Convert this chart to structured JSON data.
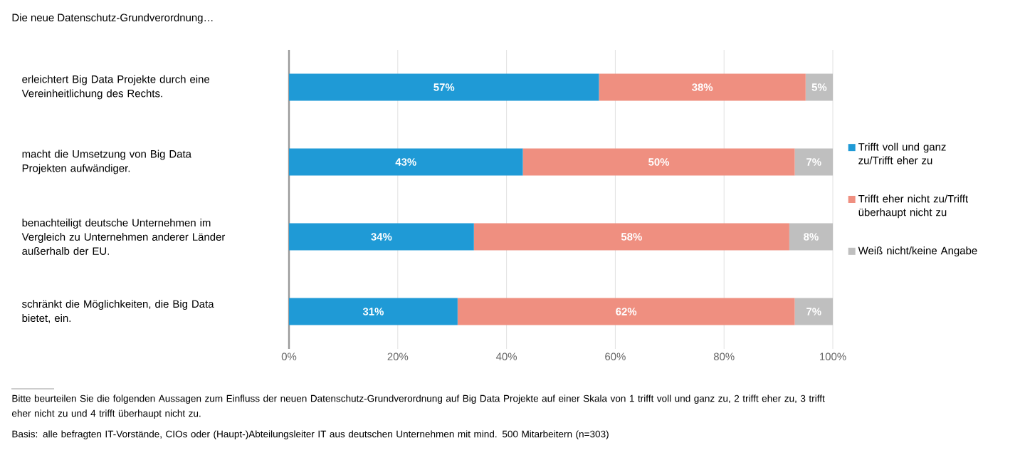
{
  "chart_data": {
    "type": "bar",
    "orientation": "horizontal",
    "stacked": true,
    "title": "Die neue Datenschutz-Grundverordnung…",
    "categories": [
      "erleichtert Big Data Projekte durch eine Vereinheitlichung des Rechts.",
      "macht die Umsetzung von Big Data Projekten aufwändiger.",
      "benachteiligt deutsche Unternehmen im Vergleich zu Unternehmen anderer Länder außerhalb der EU.",
      "schränkt die Möglichkeiten, die Big Data bietet, ein."
    ],
    "series": [
      {
        "name": "Trifft voll und ganz zu/Trifft eher zu",
        "color": "#1f9ad6",
        "values": [
          57,
          43,
          34,
          31
        ],
        "value_labels": [
          "57%",
          "43%",
          "34%",
          "31%"
        ]
      },
      {
        "name": "Trifft eher nicht zu/Trifft überhaupt nicht zu",
        "color": "#ef8f80",
        "values": [
          38,
          50,
          58,
          62
        ],
        "value_labels": [
          "38%",
          "50%",
          "58%",
          "62%"
        ]
      },
      {
        "name": "Weiß nicht/keine Angabe",
        "color": "#bfbfbf",
        "values": [
          5,
          7,
          8,
          7
        ],
        "value_labels": [
          "5%",
          "7%",
          "8%",
          "7%"
        ]
      }
    ],
    "xlim": [
      0,
      100
    ],
    "xticks": [
      {
        "value": 0,
        "label": "0%"
      },
      {
        "value": 20,
        "label": "20%"
      },
      {
        "value": 40,
        "label": "40%"
      },
      {
        "value": 60,
        "label": "60%"
      },
      {
        "value": 80,
        "label": "80%"
      },
      {
        "value": 100,
        "label": "100%"
      }
    ],
    "grid": "x",
    "legend": "right",
    "annotations": [
      "Bitte beurteilen Sie die folgenden Aussagen zum Einfluss der neuen Datenschutz-Grundverordnung auf Big Data Projekte auf einer Skala von 1 trifft voll und ganz zu, 2 trifft eher zu, 3 trifft eher nicht zu und 4 trifft überhaupt nicht zu.",
      "Basis: alle befragten IT-Vorstände, CIOs oder (Haupt-)Abteilungsleiter IT aus deutschen Unternehmen mit mind. 500 Mitarbeitern (n=303)"
    ]
  }
}
